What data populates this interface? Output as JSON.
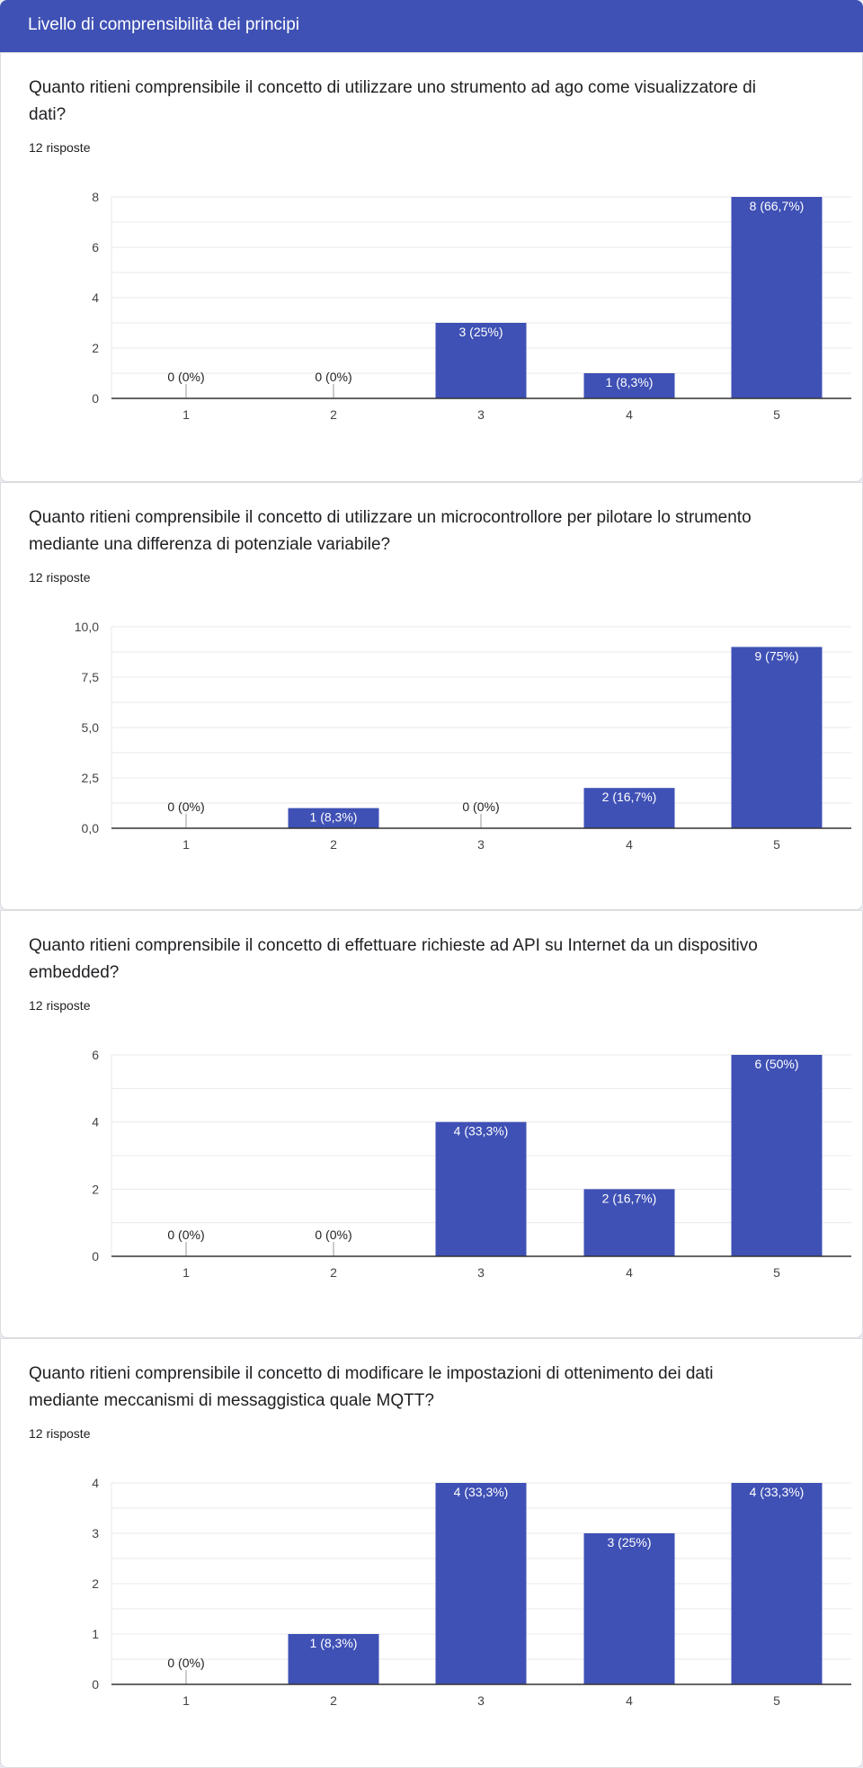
{
  "section": {
    "title": "Livello di comprensibilità dei principi"
  },
  "colors": {
    "bar": "#3f51b5",
    "header": "#3f51b5",
    "grid": "#e9e9e9",
    "axis": "#333333"
  },
  "chart_data": [
    {
      "type": "bar",
      "title": "Quanto ritieni comprensibile il concetto di utilizzare uno strumento ad ago come visualizzatore di dati?",
      "subtitle": "12 risposte",
      "categories": [
        "1",
        "2",
        "3",
        "4",
        "5"
      ],
      "values": [
        0,
        0,
        3,
        1,
        8
      ],
      "data_labels": [
        "0 (0%)",
        "0 (0%)",
        "3 (25%)",
        "1 (8,3%)",
        "8 (66,7%)"
      ],
      "yticks": [
        "0",
        "2",
        "4",
        "6",
        "8"
      ],
      "ytick_values": [
        0,
        2,
        4,
        6,
        8
      ],
      "ylim": [
        0,
        8
      ],
      "grid": true,
      "legend": "none"
    },
    {
      "type": "bar",
      "title": "Quanto ritieni comprensibile il concetto di utilizzare un microcontrollore per pilotare lo strumento mediante una differenza di potenziale variabile?",
      "subtitle": "12 risposte",
      "categories": [
        "1",
        "2",
        "3",
        "4",
        "5"
      ],
      "values": [
        0,
        1,
        0,
        2,
        9
      ],
      "data_labels": [
        "0 (0%)",
        "1 (8,3%)",
        "0 (0%)",
        "2 (16,7%)",
        "9 (75%)"
      ],
      "yticks": [
        "0,0",
        "2,5",
        "5,0",
        "7,5",
        "10,0"
      ],
      "ytick_values": [
        0,
        2.5,
        5,
        7.5,
        10
      ],
      "ylim": [
        0,
        10
      ],
      "grid": true,
      "legend": "none"
    },
    {
      "type": "bar",
      "title": "Quanto ritieni comprensibile il concetto di effettuare richieste ad API su Internet da un dispositivo embedded?",
      "subtitle": "12 risposte",
      "categories": [
        "1",
        "2",
        "3",
        "4",
        "5"
      ],
      "values": [
        0,
        0,
        4,
        2,
        6
      ],
      "data_labels": [
        "0 (0%)",
        "0 (0%)",
        "4 (33,3%)",
        "2 (16,7%)",
        "6 (50%)"
      ],
      "yticks": [
        "0",
        "2",
        "4",
        "6"
      ],
      "ytick_values": [
        0,
        2,
        4,
        6
      ],
      "ylim": [
        0,
        6
      ],
      "grid": true,
      "legend": "none"
    },
    {
      "type": "bar",
      "title": "Quanto ritieni comprensibile il concetto di modificare le impostazioni di ottenimento dei dati mediante meccanismi di messaggistica quale MQTT?",
      "subtitle": "12 risposte",
      "categories": [
        "1",
        "2",
        "3",
        "4",
        "5"
      ],
      "values": [
        0,
        1,
        4,
        3,
        4
      ],
      "data_labels": [
        "0 (0%)",
        "1 (8,3%)",
        "4 (33,3%)",
        "3 (25%)",
        "4 (33,3%)"
      ],
      "yticks": [
        "0",
        "1",
        "2",
        "3",
        "4"
      ],
      "ytick_values": [
        0,
        1,
        2,
        3,
        4
      ],
      "ylim": [
        0,
        4
      ],
      "grid": true,
      "legend": "none"
    }
  ]
}
